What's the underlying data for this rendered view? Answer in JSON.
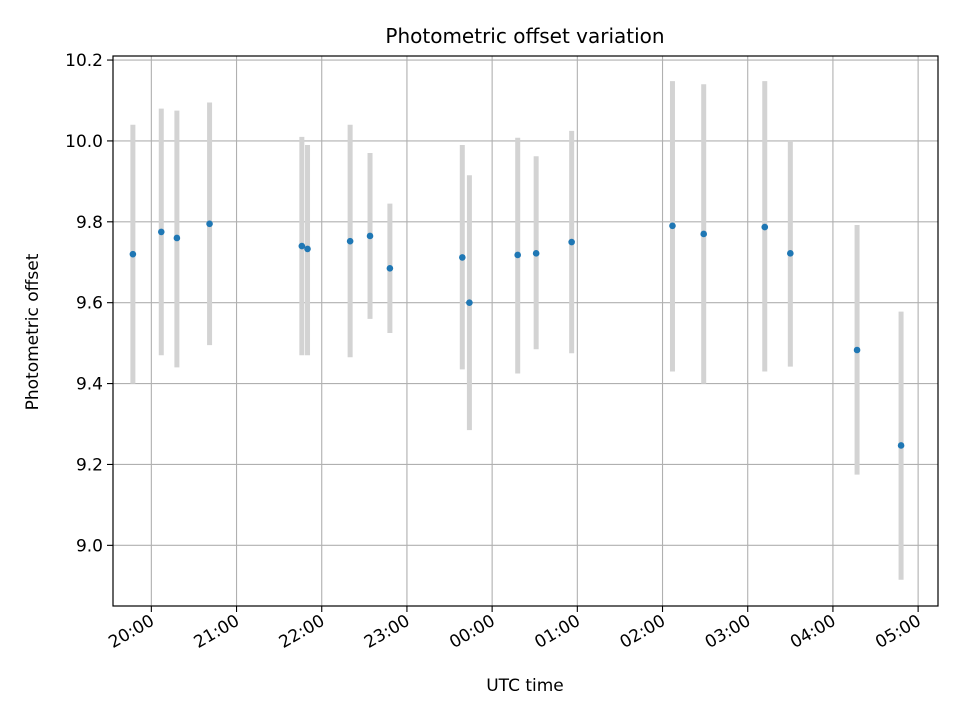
{
  "chart_data": {
    "type": "scatter",
    "title": "Photometric offset variation",
    "xlabel": "UTC time",
    "ylabel": "Photometric offset",
    "x_unit": "UTC time (hours, continuing past midnight)",
    "xlim": [
      "19:33",
      "05:14"
    ],
    "ylim": [
      8.85,
      10.21
    ],
    "grid": true,
    "x_ticks": [
      "20:00",
      "21:00",
      "22:00",
      "23:00",
      "00:00",
      "01:00",
      "02:00",
      "03:00",
      "04:00",
      "05:00"
    ],
    "y_ticks": [
      "9.0",
      "9.2",
      "9.4",
      "9.6",
      "9.8",
      "10.0",
      "10.2"
    ],
    "colors": {
      "point": "#1f77b4",
      "errorbar": "#d3d3d3",
      "grid": "#b0b0b0"
    },
    "points": [
      {
        "x": "19:47",
        "y": 9.72,
        "low": 9.4,
        "high": 10.04
      },
      {
        "x": "20:07",
        "y": 9.775,
        "low": 9.47,
        "high": 10.08
      },
      {
        "x": "20:18",
        "y": 9.76,
        "low": 9.44,
        "high": 10.075
      },
      {
        "x": "20:41",
        "y": 9.795,
        "low": 9.495,
        "high": 10.095
      },
      {
        "x": "21:46",
        "y": 9.74,
        "low": 9.47,
        "high": 10.01
      },
      {
        "x": "21:50",
        "y": 9.733,
        "low": 9.47,
        "high": 9.99
      },
      {
        "x": "22:20",
        "y": 9.752,
        "low": 9.465,
        "high": 10.04
      },
      {
        "x": "22:34",
        "y": 9.765,
        "low": 9.56,
        "high": 9.97
      },
      {
        "x": "22:48",
        "y": 9.685,
        "low": 9.525,
        "high": 9.845
      },
      {
        "x": "23:39",
        "y": 9.712,
        "low": 9.435,
        "high": 9.99
      },
      {
        "x": "23:44",
        "y": 9.6,
        "low": 9.285,
        "high": 9.915
      },
      {
        "x": "00:18",
        "y": 9.718,
        "low": 9.425,
        "high": 10.008
      },
      {
        "x": "00:31",
        "y": 9.722,
        "low": 9.485,
        "high": 9.962
      },
      {
        "x": "00:56",
        "y": 9.75,
        "low": 9.475,
        "high": 10.025
      },
      {
        "x": "02:07",
        "y": 9.79,
        "low": 9.43,
        "high": 10.148
      },
      {
        "x": "02:29",
        "y": 9.77,
        "low": 9.4,
        "high": 10.14
      },
      {
        "x": "03:12",
        "y": 9.787,
        "low": 9.43,
        "high": 10.148
      },
      {
        "x": "03:30",
        "y": 9.722,
        "low": 9.442,
        "high": 10.0
      },
      {
        "x": "04:17",
        "y": 9.483,
        "low": 9.175,
        "high": 9.792
      },
      {
        "x": "04:48",
        "y": 9.247,
        "low": 8.915,
        "high": 9.578
      }
    ]
  }
}
